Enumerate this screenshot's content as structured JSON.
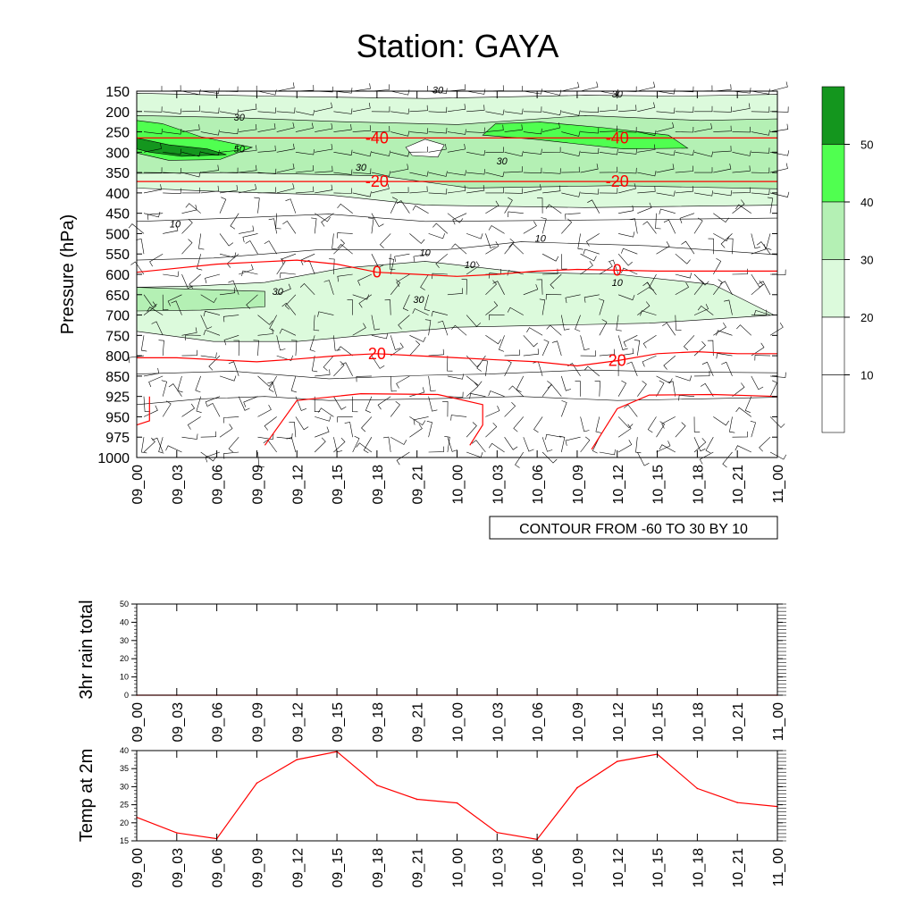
{
  "title": "Station: GAYA",
  "colors": {
    "temp_line": "#ff0000",
    "fill_10_20": "#ffffff",
    "fill_20_30": "#dcfadc",
    "fill_30_40": "#b4f0b4",
    "fill_40_50": "#50ff50",
    "fill_50_plus": "#14961e"
  },
  "chart_data": [
    {
      "type": "heatmap",
      "ylabel": "Pressure (hPa)",
      "x": [
        "09_00",
        "09_03",
        "09_06",
        "09_09",
        "09_12",
        "09_15",
        "09_18",
        "09_21",
        "10_00",
        "10_03",
        "10_06",
        "10_09",
        "10_12",
        "10_15",
        "10_18",
        "10_21",
        "11_00"
      ],
      "pressure_levels": [
        150,
        200,
        250,
        300,
        350,
        400,
        450,
        500,
        550,
        600,
        650,
        700,
        750,
        800,
        850,
        925,
        950,
        975,
        1000
      ],
      "info_label": "CONTOUR FROM -60 TO 30 BY 10",
      "colorbar": {
        "ticks": [
          10,
          20,
          30,
          40,
          50
        ]
      },
      "temperature_contours": [
        {
          "label": "-40",
          "values_hPa": [
            265,
            265,
            265,
            265,
            265,
            265,
            265,
            265,
            265,
            265,
            265,
            265,
            265,
            265,
            265,
            265,
            265
          ]
        },
        {
          "label": "-20",
          "values_hPa": [
            372,
            372,
            372,
            372,
            372,
            372,
            372,
            372,
            372,
            372,
            372,
            372,
            372,
            372,
            372,
            372,
            372
          ]
        },
        {
          "label": "0",
          "values_hPa": [
            595,
            585,
            575,
            570,
            565,
            575,
            595,
            600,
            605,
            600,
            592,
            588,
            590,
            592,
            592,
            592,
            592
          ]
        },
        {
          "label": "20",
          "values_hPa": [
            805,
            805,
            810,
            815,
            808,
            800,
            795,
            800,
            805,
            810,
            815,
            825,
            812,
            795,
            790,
            795,
            795
          ]
        }
      ],
      "contour_labels": [
        "10",
        "30",
        "50"
      ]
    },
    {
      "type": "line",
      "ylabel": "3hr rain total",
      "x": [
        "09_00",
        "09_03",
        "09_06",
        "09_09",
        "09_12",
        "09_15",
        "09_18",
        "09_21",
        "10_00",
        "10_03",
        "10_06",
        "10_09",
        "10_12",
        "10_15",
        "10_18",
        "10_21",
        "11_00"
      ],
      "values": [
        0,
        0,
        0,
        0,
        0,
        0,
        0,
        0,
        0,
        0,
        0,
        0,
        0,
        0,
        0,
        0,
        0
      ],
      "ylim": [
        0,
        50
      ],
      "yticks": [
        0,
        10,
        20,
        30,
        40,
        50
      ]
    },
    {
      "type": "line",
      "ylabel": "Temp at 2m",
      "x": [
        "09_00",
        "09_03",
        "09_06",
        "09_09",
        "09_12",
        "09_15",
        "09_18",
        "09_21",
        "10_00",
        "10_03",
        "10_06",
        "10_09",
        "10_12",
        "10_15",
        "10_18",
        "10_21",
        "11_00"
      ],
      "values": [
        21.5,
        17.2,
        15.6,
        31,
        37.5,
        39.7,
        30.4,
        26.5,
        25.5,
        17.3,
        15.4,
        29.7,
        37,
        39,
        29.5,
        25.6,
        24.5
      ],
      "ylim": [
        15,
        40
      ],
      "yticks": [
        15,
        20,
        25,
        30,
        35,
        40
      ]
    }
  ]
}
